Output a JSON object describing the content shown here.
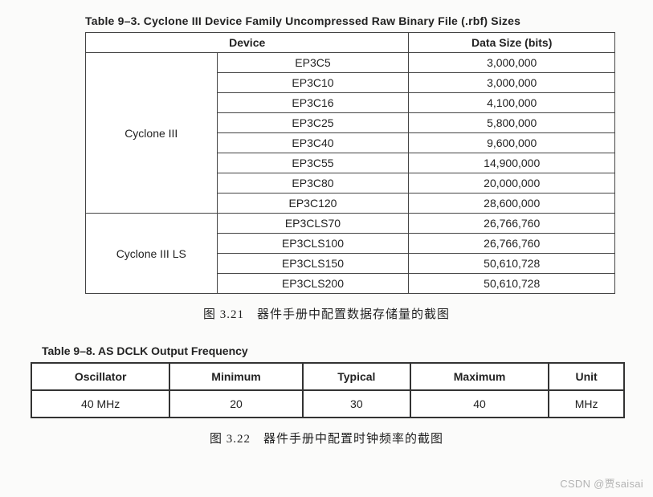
{
  "table1": {
    "title": "Table 9–3.  Cyclone III Device Family Uncompressed Raw Binary File (.rbf) Sizes",
    "header_device": "Device",
    "header_size": "Data Size (bits)",
    "groups": [
      {
        "family": "Cyclone III",
        "rows": [
          {
            "part": "EP3C5",
            "size": "3,000,000"
          },
          {
            "part": "EP3C10",
            "size": "3,000,000"
          },
          {
            "part": "EP3C16",
            "size": "4,100,000"
          },
          {
            "part": "EP3C25",
            "size": "5,800,000"
          },
          {
            "part": "EP3C40",
            "size": "9,600,000"
          },
          {
            "part": "EP3C55",
            "size": "14,900,000"
          },
          {
            "part": "EP3C80",
            "size": "20,000,000"
          },
          {
            "part": "EP3C120",
            "size": "28,600,000"
          }
        ]
      },
      {
        "family": "Cyclone III LS",
        "rows": [
          {
            "part": "EP3CLS70",
            "size": "26,766,760"
          },
          {
            "part": "EP3CLS100",
            "size": "26,766,760"
          },
          {
            "part": "EP3CLS150",
            "size": "50,610,728"
          },
          {
            "part": "EP3CLS200",
            "size": "50,610,728"
          }
        ]
      }
    ],
    "caption": "图 3.21　器件手册中配置数据存储量的截图"
  },
  "table2": {
    "title": "Table 9–8.  AS DCLK Output Frequency",
    "headers": {
      "oscillator": "Oscillator",
      "minimum": "Minimum",
      "typical": "Typical",
      "maximum": "Maximum",
      "unit": "Unit"
    },
    "row": {
      "oscillator": "40 MHz",
      "minimum": "20",
      "typical": "30",
      "maximum": "40",
      "unit": "MHz"
    },
    "caption": "图 3.22　器件手册中配置时钟频率的截图"
  },
  "watermark": "CSDN @贾saisai"
}
